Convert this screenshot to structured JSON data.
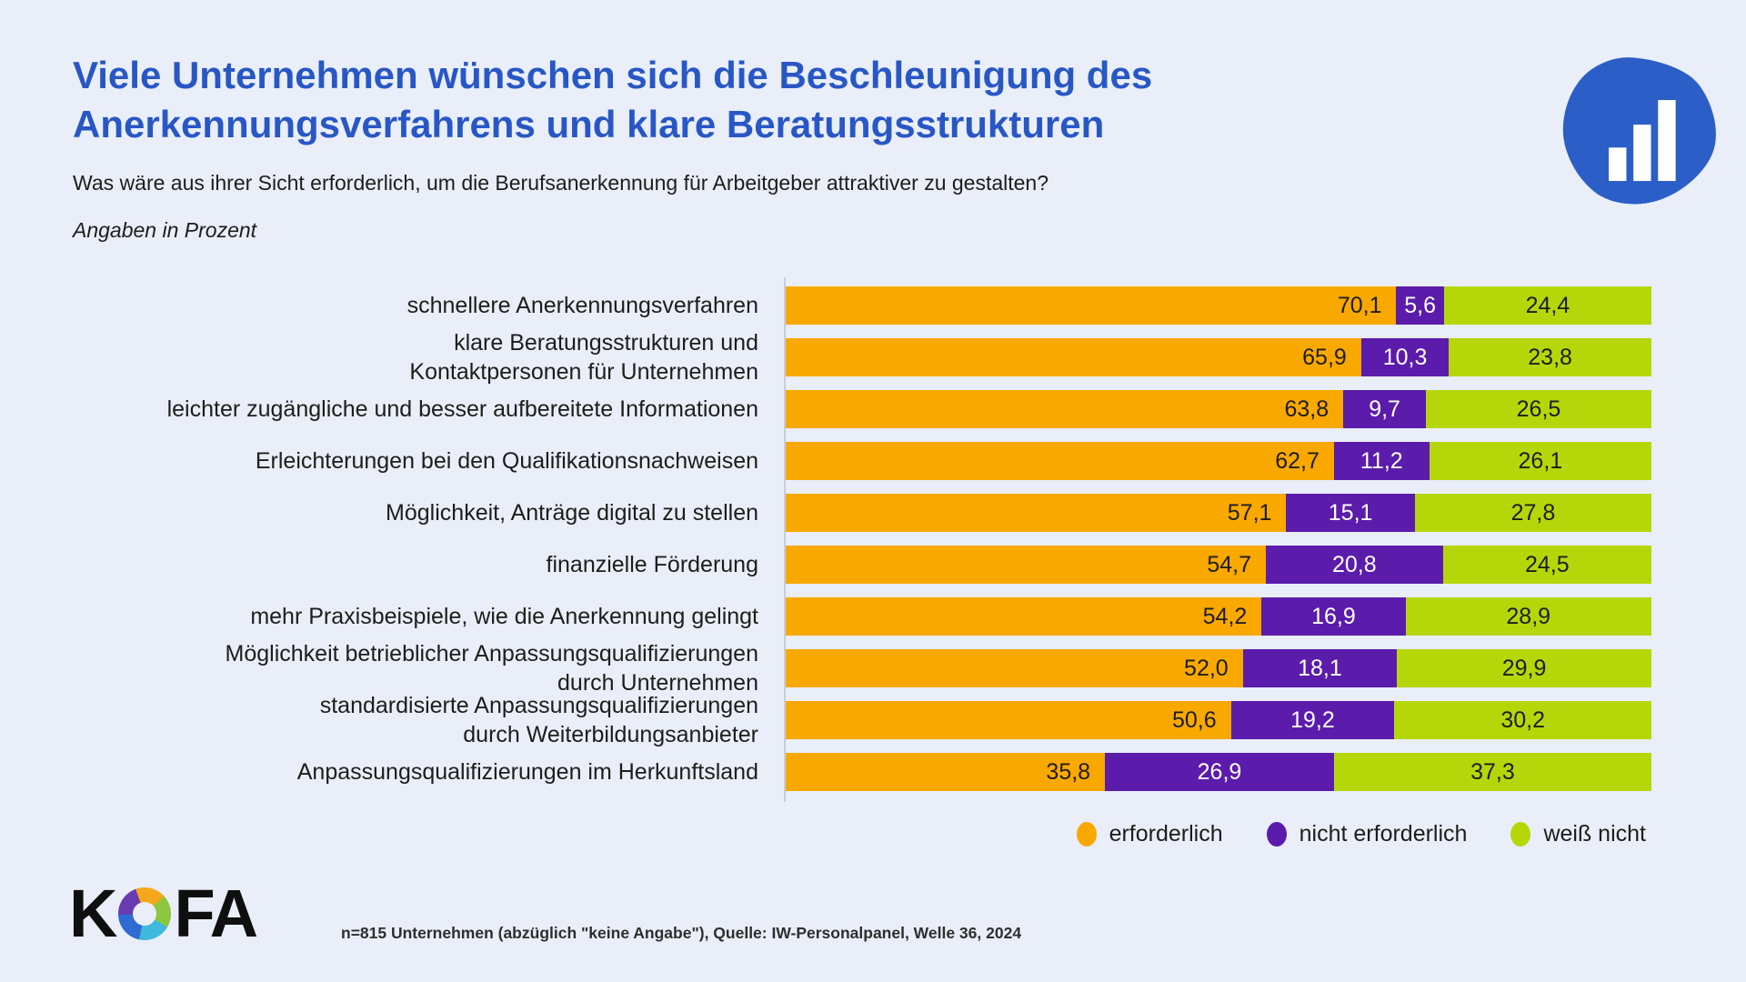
{
  "page": {
    "background": "#E9EEF8"
  },
  "header": {
    "title_line1": "Viele Unternehmen wünschen sich die Beschleunigung des",
    "title_line2": "Anerkennungsverfahrens und klare Beratungsstrukturen",
    "title_color": "#2857C5",
    "subtitle": "Was wäre aus ihrer Sicht erforderlich, um die Berufsanerkennung für Arbeitgeber attraktiver zu gestalten?",
    "unit_note": "Angaben in Prozent"
  },
  "chart_data": {
    "type": "bar",
    "orientation": "horizontal",
    "stacked": true,
    "unit": "percent",
    "xlim": [
      0,
      100
    ],
    "grid": false,
    "legend_position": "bottom-right",
    "categories": [
      [
        "schnellere Anerkennungsverfahren"
      ],
      [
        "klare Beratungsstrukturen und",
        "Kontaktpersonen für Unternehmen"
      ],
      [
        "leichter zugängliche und besser aufbereitete Informationen"
      ],
      [
        "Erleichterungen bei den Qualifikationsnachweisen"
      ],
      [
        "Möglichkeit, Anträge digital zu stellen"
      ],
      [
        "finanzielle Förderung"
      ],
      [
        "mehr Praxisbeispiele, wie die Anerkennung gelingt"
      ],
      [
        "Möglichkeit betrieblicher Anpassungsqualifizierungen",
        "durch Unternehmen"
      ],
      [
        "standardisierte Anpassungsqualifizierungen",
        "durch Weiterbildungsanbieter"
      ],
      [
        "Anpassungsqualifizierungen im Herkunftsland"
      ]
    ],
    "series": [
      {
        "name": "erforderlich",
        "color": "#F9A800",
        "label_color": "#1D1D1B",
        "label_align": "right",
        "values": [
          70.1,
          65.9,
          63.8,
          62.7,
          57.1,
          54.7,
          54.2,
          52.0,
          50.6,
          35.8
        ]
      },
      {
        "name": "nicht erforderlich",
        "color": "#5B1CAC",
        "label_color": "#FFFFFF",
        "label_align": "center",
        "values": [
          5.6,
          10.3,
          9.7,
          11.2,
          15.1,
          20.8,
          16.9,
          18.1,
          19.2,
          26.9
        ]
      },
      {
        "name": "weiß nicht",
        "color": "#B5D70A",
        "label_color": "#1D1D1B",
        "label_align": "center",
        "values": [
          24.4,
          23.8,
          26.5,
          26.1,
          27.8,
          24.5,
          28.9,
          29.9,
          30.2,
          37.3
        ]
      }
    ],
    "value_labels": [
      [
        "70,1",
        "5,6",
        "24,4"
      ],
      [
        "65,9",
        "10,3",
        "23,8"
      ],
      [
        "63,8",
        "9,7",
        "26,5"
      ],
      [
        "62,7",
        "11,2",
        "26,1"
      ],
      [
        "57,1",
        "15,1",
        "27,8"
      ],
      [
        "54,7",
        "20,8",
        "24,5"
      ],
      [
        "54,2",
        "16,9",
        "28,9"
      ],
      [
        "52,0",
        "18,1",
        "29,9"
      ],
      [
        "50,6",
        "19,2",
        "30,2"
      ],
      [
        "35,8",
        "26,9",
        "37,3"
      ]
    ],
    "axis_line_color": "#C7CDDB"
  },
  "legend": {
    "items": [
      {
        "label": "erforderlich",
        "color": "#F9A800"
      },
      {
        "label": "nicht erforderlich",
        "color": "#5B1CAC"
      },
      {
        "label": "weiß nicht",
        "color": "#B5D70A"
      }
    ]
  },
  "branding": {
    "kofa_text_k": "K",
    "kofa_text_fa": "FA",
    "kofa_aperture_colors": [
      "#F5A81C",
      "#8DC63F",
      "#3FB9DC",
      "#2F6BD0",
      "#6A3BB0"
    ],
    "logo_blue": "#2B5EC7"
  },
  "footer": {
    "source": "n=815 Unternehmen (abzüglich \"keine Angabe\"), Quelle: IW-Personalpanel, Welle 36, 2024"
  }
}
